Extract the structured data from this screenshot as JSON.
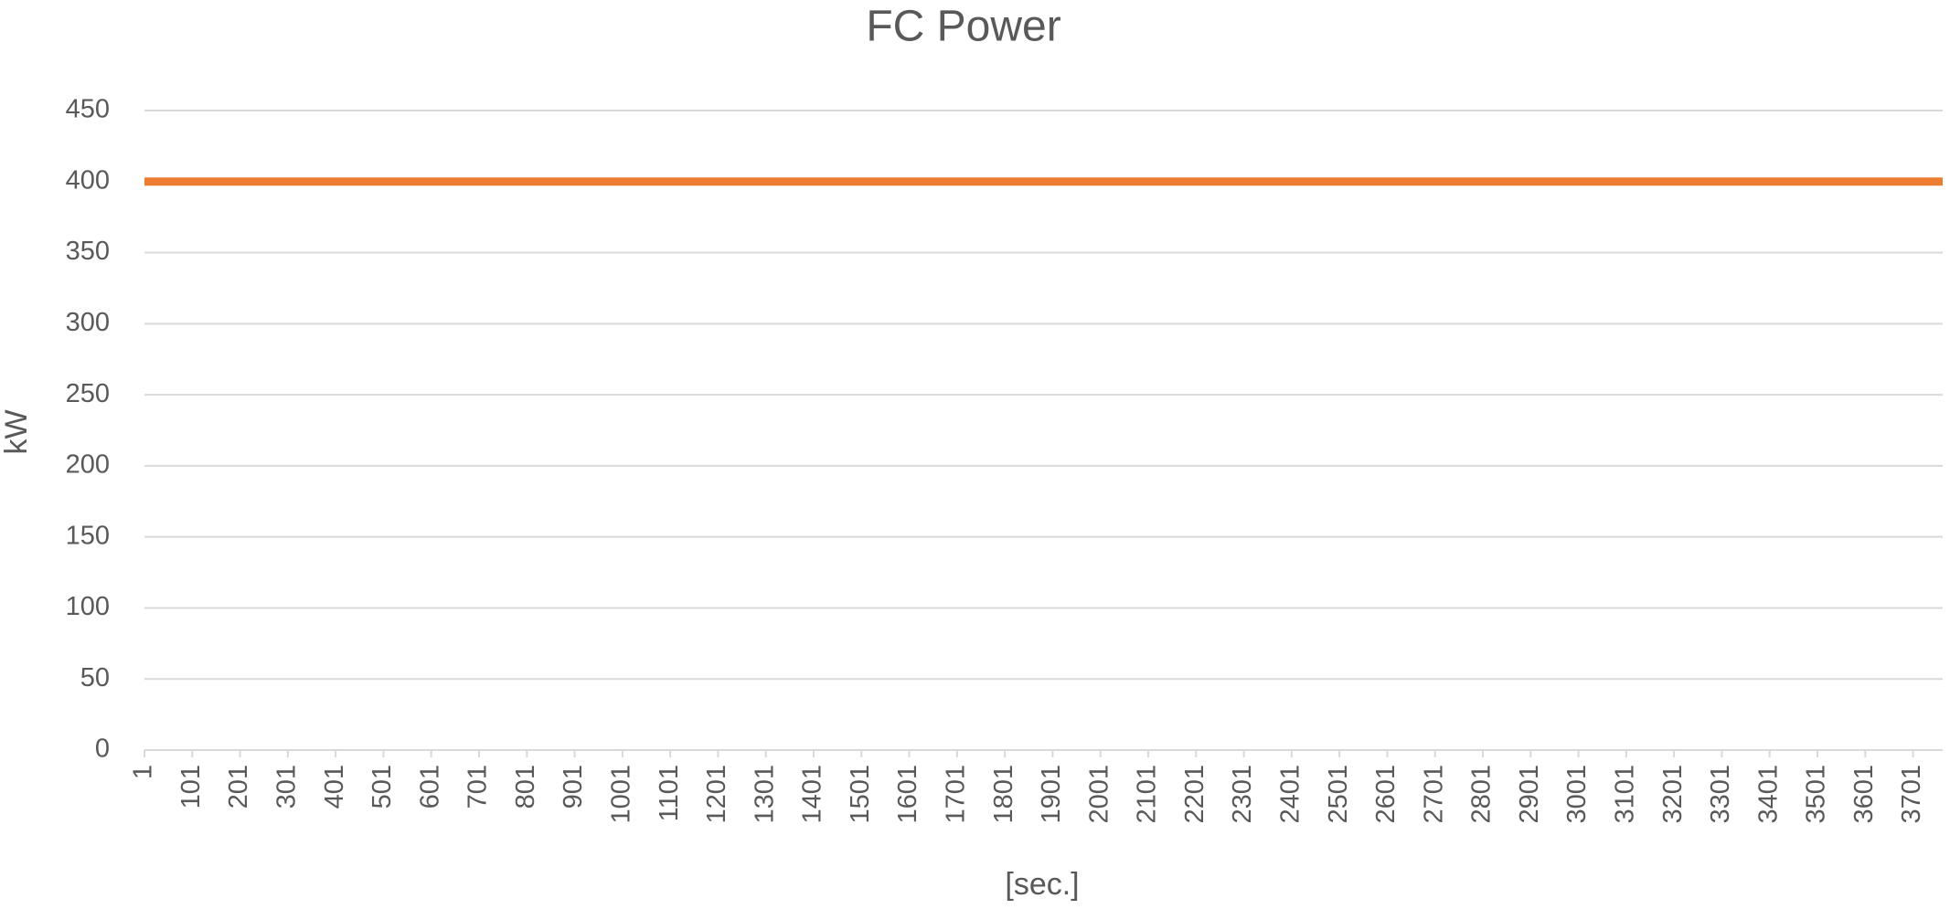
{
  "chart_data": {
    "type": "line",
    "title": "FC Power",
    "x_label": "[sec.]",
    "y_label": "kW",
    "x": [
      1,
      3763
    ],
    "series": [
      {
        "name": "FC Power",
        "color": "#ed7d31",
        "values": [
          400,
          400
        ]
      }
    ],
    "xlim": [
      1,
      3763
    ],
    "xticks": [
      1,
      101,
      201,
      301,
      401,
      501,
      601,
      701,
      801,
      901,
      1001,
      1101,
      1201,
      1301,
      1401,
      1501,
      1601,
      1701,
      1801,
      1901,
      2001,
      2101,
      2201,
      2301,
      2401,
      2501,
      2601,
      2701,
      2801,
      2901,
      3001,
      3101,
      3201,
      3301,
      3401,
      3501,
      3601,
      3701
    ],
    "ylim": [
      0,
      450
    ],
    "yticks": [
      0,
      50,
      100,
      150,
      200,
      250,
      300,
      350,
      400,
      450
    ],
    "grid": true
  }
}
